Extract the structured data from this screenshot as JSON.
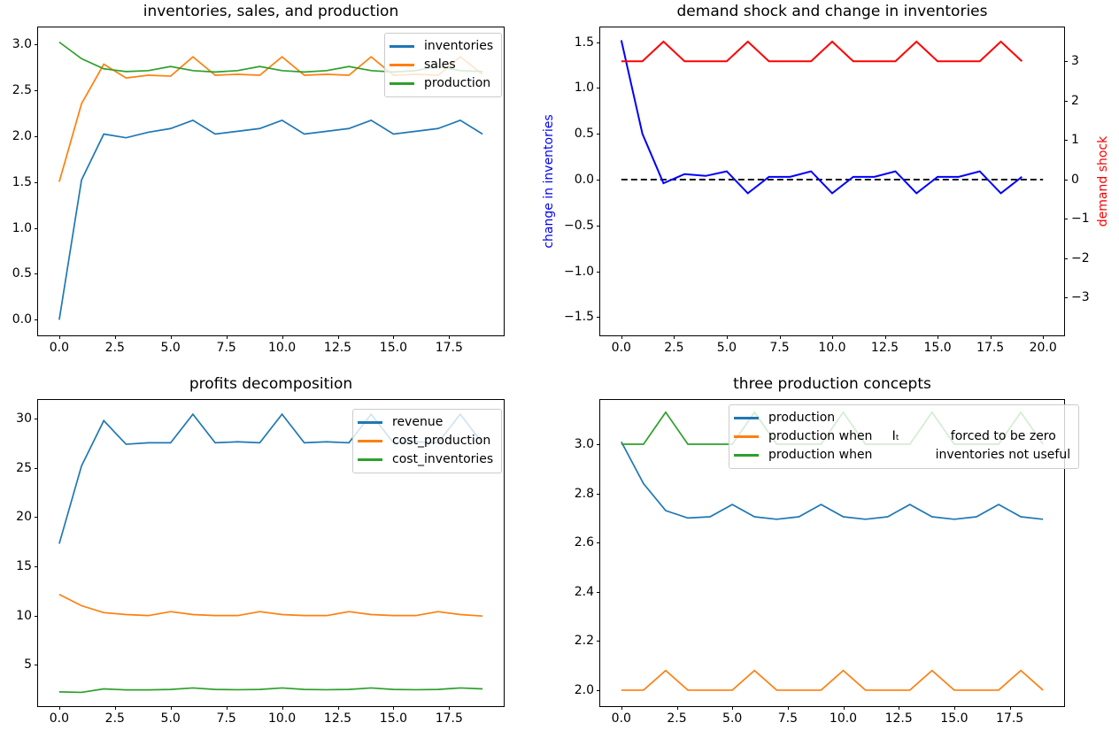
{
  "figure": {
    "background": "#ffffff"
  },
  "colors": {
    "mpl_blue": "#1f77b4",
    "mpl_orange": "#ff7f0e",
    "mpl_green": "#2ca02c",
    "pure_blue": "#0000ff",
    "pure_red": "#ff0000",
    "black": "#000000"
  },
  "chart_data": [
    {
      "type": "line",
      "title": "inventories, sales, and production",
      "x": [
        0,
        1,
        2,
        3,
        4,
        5,
        6,
        7,
        8,
        9,
        10,
        11,
        12,
        13,
        14,
        15,
        16,
        17,
        18,
        19
      ],
      "xlim": [
        -0.95,
        19.95
      ],
      "ylim": [
        -0.17,
        3.18
      ],
      "grid": false,
      "legend": true,
      "legend_position": "upper-right",
      "xticks": {
        "values": [
          0,
          2.5,
          5,
          7.5,
          10,
          12.5,
          15,
          17.5
        ],
        "labels": [
          "0.0",
          "2.5",
          "5.0",
          "7.5",
          "10.0",
          "12.5",
          "15.0",
          "17.5"
        ]
      },
      "yticks": {
        "values": [
          0,
          0.5,
          1,
          1.5,
          2,
          2.5,
          3
        ],
        "labels": [
          "0.0",
          "0.5",
          "1.0",
          "1.5",
          "2.0",
          "2.5",
          "3.0"
        ]
      },
      "series": [
        {
          "name": "inventories",
          "color": "#1f77b4",
          "linewidth": 1.7,
          "values": [
            0.0,
            1.52,
            2.02,
            1.98,
            2.04,
            2.08,
            2.17,
            2.02,
            2.05,
            2.08,
            2.17,
            2.02,
            2.05,
            2.08,
            2.17,
            2.02,
            2.05,
            2.08,
            2.17,
            2.02
          ]
        },
        {
          "name": "sales",
          "color": "#ff7f0e",
          "linewidth": 1.7,
          "values": [
            1.5,
            2.35,
            2.78,
            2.63,
            2.66,
            2.65,
            2.86,
            2.66,
            2.67,
            2.66,
            2.86,
            2.66,
            2.67,
            2.66,
            2.86,
            2.66,
            2.67,
            2.66,
            2.86,
            2.67
          ]
        },
        {
          "name": "production",
          "color": "#2ca02c",
          "linewidth": 1.7,
          "values": [
            3.02,
            2.84,
            2.73,
            2.7,
            2.71,
            2.755,
            2.71,
            2.695,
            2.71,
            2.755,
            2.71,
            2.695,
            2.71,
            2.755,
            2.71,
            2.695,
            2.71,
            2.755,
            2.71,
            2.7
          ]
        }
      ]
    },
    {
      "type": "line",
      "title": "demand shock and change in inventories",
      "ylabel_left": "change in inventories",
      "ylabel_left_color": "#0000ff",
      "ylabel_right": "demand shock",
      "ylabel_right_color": "#ff0000",
      "x": [
        0,
        1,
        2,
        3,
        4,
        5,
        6,
        7,
        8,
        9,
        10,
        11,
        12,
        13,
        14,
        15,
        16,
        17,
        18,
        19
      ],
      "xlim": [
        -1.0,
        21.0
      ],
      "ylim": [
        -1.7,
        1.66
      ],
      "ylim_right": [
        -3.96,
        3.86
      ],
      "grid": false,
      "legend": false,
      "xticks": {
        "values": [
          0,
          2.5,
          5,
          7.5,
          10,
          12.5,
          15,
          17.5,
          20
        ],
        "labels": [
          "0.0",
          "2.5",
          "5.0",
          "7.5",
          "10.0",
          "12.5",
          "15.0",
          "17.5",
          "20.0"
        ]
      },
      "yticks": {
        "values": [
          -1.5,
          -1,
          -0.5,
          0,
          0.5,
          1,
          1.5
        ],
        "labels": [
          "−1.5",
          "−1.0",
          "−0.5",
          "0.0",
          "0.5",
          "1.0",
          "1.5"
        ]
      },
      "yticks_right": {
        "values": [
          -3,
          -2,
          -1,
          0,
          1,
          2,
          3
        ],
        "labels": [
          "−3",
          "−2",
          "−1",
          "0",
          "1",
          "2",
          "3"
        ]
      },
      "series": [
        {
          "name": "zero line",
          "color": "#000000",
          "linewidth": 1.8,
          "dashed": true,
          "x": [
            0,
            20
          ],
          "values": [
            0,
            0
          ]
        },
        {
          "name": "change in inventories",
          "color": "#0000ff",
          "linewidth": 2,
          "values": [
            1.52,
            0.5,
            -0.04,
            0.06,
            0.04,
            0.09,
            -0.15,
            0.03,
            0.03,
            0.09,
            -0.15,
            0.03,
            0.03,
            0.09,
            -0.15,
            0.03,
            0.03,
            0.09,
            -0.15,
            0.03
          ]
        },
        {
          "name": "demand shock",
          "color": "#ff0000",
          "linewidth": 2,
          "axis": "right",
          "values": [
            3,
            3,
            3.5,
            3,
            3,
            3,
            3.5,
            3,
            3,
            3,
            3.5,
            3,
            3,
            3,
            3.5,
            3,
            3,
            3,
            3.5,
            3
          ]
        }
      ]
    },
    {
      "type": "line",
      "title": "profits decomposition",
      "x": [
        0,
        1,
        2,
        3,
        4,
        5,
        6,
        7,
        8,
        9,
        10,
        11,
        12,
        13,
        14,
        15,
        16,
        17,
        18,
        19
      ],
      "xlim": [
        -0.95,
        19.95
      ],
      "ylim": [
        0.8,
        31.9
      ],
      "grid": false,
      "legend": true,
      "legend_position": "upper-right",
      "xticks": {
        "values": [
          0,
          2.5,
          5,
          7.5,
          10,
          12.5,
          15,
          17.5
        ],
        "labels": [
          "0.0",
          "2.5",
          "5.0",
          "7.5",
          "10.0",
          "12.5",
          "15.0",
          "17.5"
        ]
      },
      "yticks": {
        "values": [
          5,
          10,
          15,
          20,
          25,
          30
        ],
        "labels": [
          "5",
          "10",
          "15",
          "20",
          "25",
          "30"
        ]
      },
      "series": [
        {
          "name": "revenue",
          "color": "#1f77b4",
          "linewidth": 1.7,
          "values": [
            17.3,
            25.2,
            29.8,
            27.4,
            27.55,
            27.55,
            30.45,
            27.55,
            27.65,
            27.55,
            30.45,
            27.55,
            27.65,
            27.55,
            30.45,
            27.55,
            27.65,
            27.55,
            30.45,
            27.5
          ]
        },
        {
          "name": "cost_production",
          "color": "#ff7f0e",
          "linewidth": 1.7,
          "values": [
            12.15,
            11.0,
            10.3,
            10.1,
            10.0,
            10.4,
            10.1,
            10.0,
            10.0,
            10.4,
            10.1,
            10.0,
            10.0,
            10.4,
            10.1,
            10.0,
            10.0,
            10.4,
            10.1,
            9.95
          ]
        },
        {
          "name": "cost_inventories",
          "color": "#2ca02c",
          "linewidth": 1.7,
          "values": [
            2.25,
            2.2,
            2.55,
            2.45,
            2.45,
            2.5,
            2.65,
            2.5,
            2.47,
            2.5,
            2.65,
            2.5,
            2.47,
            2.5,
            2.65,
            2.5,
            2.47,
            2.5,
            2.65,
            2.55
          ]
        }
      ]
    },
    {
      "type": "line",
      "title": "three production concepts",
      "x": [
        0,
        1,
        2,
        3,
        4,
        5,
        6,
        7,
        8,
        9,
        10,
        11,
        12,
        13,
        14,
        15,
        16,
        17,
        18,
        19
      ],
      "xlim": [
        -0.95,
        19.95
      ],
      "ylim": [
        1.935,
        3.18
      ],
      "grid": false,
      "legend": true,
      "legend_position": "upper-center-right",
      "xticks": {
        "values": [
          0,
          2.5,
          5,
          7.5,
          10,
          12.5,
          15,
          17.5
        ],
        "labels": [
          "0.0",
          "2.5",
          "5.0",
          "7.5",
          "10.0",
          "12.5",
          "15.0",
          "17.5"
        ]
      },
      "yticks": {
        "values": [
          2.0,
          2.2,
          2.4,
          2.6,
          2.8,
          3.0
        ],
        "labels": [
          "2.0",
          "2.2",
          "2.4",
          "2.6",
          "2.8",
          "3.0"
        ]
      },
      "series": [
        {
          "name": "production",
          "color": "#1f77b4",
          "linewidth": 1.7,
          "values": [
            3.01,
            2.84,
            2.73,
            2.7,
            2.705,
            2.755,
            2.705,
            2.695,
            2.705,
            2.755,
            2.705,
            2.695,
            2.705,
            2.755,
            2.705,
            2.695,
            2.705,
            2.755,
            2.705,
            2.695
          ]
        },
        {
          "name": "production when It forced to be zero",
          "color": "#ff7f0e",
          "linewidth": 1.7,
          "legend_label": "production when     Iₜ             forced to be zero",
          "values": [
            2.0,
            2.0,
            2.08,
            2.0,
            2.0,
            2.0,
            2.08,
            2.0,
            2.0,
            2.0,
            2.08,
            2.0,
            2.0,
            2.0,
            2.08,
            2.0,
            2.0,
            2.0,
            2.08,
            2.0
          ]
        },
        {
          "name": "production when inventories not useful",
          "color": "#2ca02c",
          "linewidth": 1.7,
          "legend_label": "production when                inventories not useful",
          "values": [
            3.0,
            3.0,
            3.13,
            3.0,
            3.0,
            3.0,
            3.13,
            3.0,
            3.0,
            3.0,
            3.13,
            3.0,
            3.0,
            3.0,
            3.13,
            3.0,
            3.0,
            3.0,
            3.13,
            3.0
          ]
        }
      ]
    }
  ]
}
